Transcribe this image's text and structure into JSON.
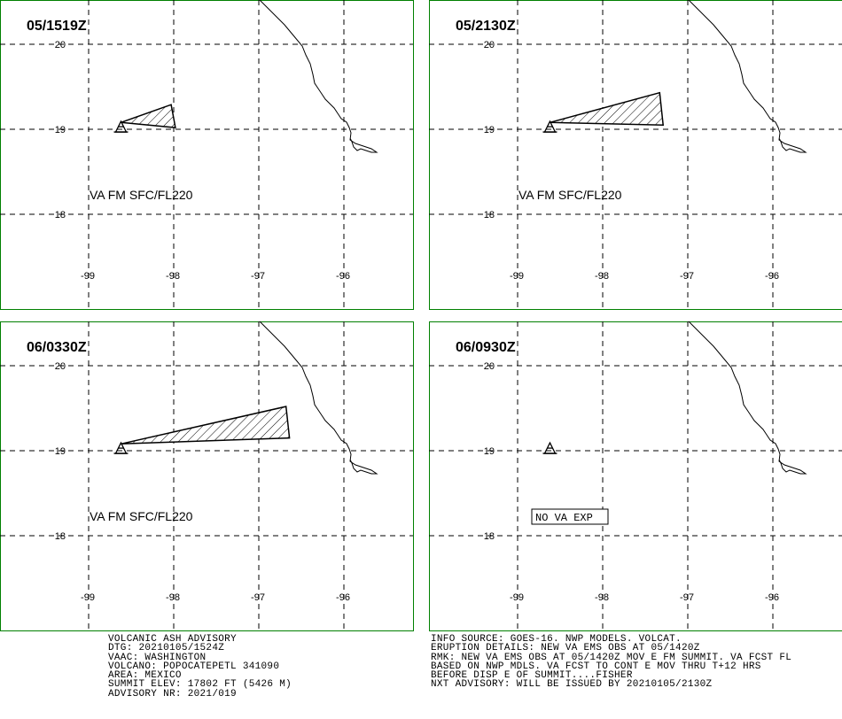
{
  "panels": [
    {
      "time_label": "05/1519Z",
      "va_label": "VA FM SFC/FL220",
      "no_va_label": "",
      "ash_polygon": [
        [
          -98.62,
          19.08
        ],
        [
          -98.03,
          19.29
        ],
        [
          -97.98,
          19.02
        ]
      ]
    },
    {
      "time_label": "05/2130Z",
      "va_label": "VA FM SFC/FL220",
      "no_va_label": "",
      "ash_polygon": [
        [
          -98.62,
          19.08
        ],
        [
          -97.33,
          19.43
        ],
        [
          -97.29,
          19.05
        ]
      ]
    },
    {
      "time_label": "06/0330Z",
      "va_label": "VA FM SFC/FL220",
      "no_va_label": "",
      "ash_polygon": [
        [
          -98.62,
          19.08
        ],
        [
          -96.68,
          19.52
        ],
        [
          -96.64,
          19.15
        ]
      ]
    },
    {
      "time_label": "06/0930Z",
      "va_label": "",
      "no_va_label": "NO VA EXP",
      "ash_polygon": []
    }
  ],
  "map": {
    "lat_ticks": [
      "20",
      "19",
      "18"
    ],
    "lon_ticks": [
      "-99",
      "-98",
      "-97",
      "-96"
    ],
    "volcano": {
      "lon": -98.62,
      "lat": 19.02
    },
    "frame_color": "#008000"
  },
  "advisory_left": [
    "VOLCANIC ASH ADVISORY",
    "DTG: 20210105/1524Z",
    "VAAC: WASHINGTON",
    "VOLCANO: POPOCATEPETL 341090",
    "AREA: MEXICO",
    "SUMMIT ELEV: 17802 FT (5426 M)",
    "ADVISORY NR: 2021/019"
  ],
  "advisory_right": [
    "INFO SOURCE: GOES-16. NWP MODELS. VOLCAT.",
    "ERUPTION DETAILS: NEW VA EMS OBS AT 05/1420Z",
    "RMK: NEW VA EMS OBS AT 05/1420Z MOV E FM SUMMIT. VA FCST FL",
    "BASED ON NWP MDLS. VA FCST TO CONT E MOV THRU T+12 HRS",
    "BEFORE DISP E OF SUMMIT....FISHER",
    "NXT ADVISORY: WILL BE ISSUED BY 20210105/2130Z"
  ]
}
